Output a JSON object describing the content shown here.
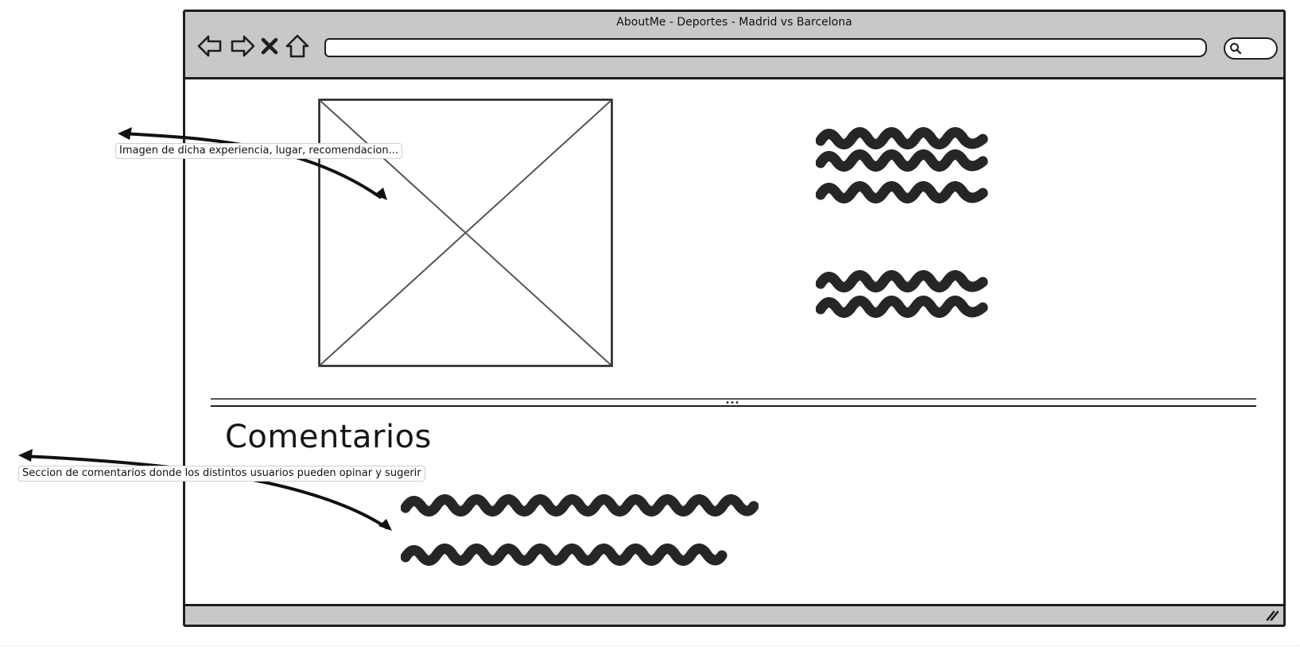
{
  "window": {
    "title": "AboutMe - Deportes - Madrid vs Barcelona",
    "url": ""
  },
  "toolbar": {
    "icons": [
      "back-arrow-icon",
      "forward-arrow-icon",
      "stop-icon",
      "home-icon",
      "search-icon"
    ]
  },
  "main": {
    "image_placeholder": "image-placeholder",
    "comments_heading": "Comentarios"
  },
  "annotations": {
    "image_note": "Imagen de dicha experiencia, lugar, recomendacion...",
    "comments_note": "Seccion de comentarios donde los distintos usuarios pueden opinar y sugerir"
  },
  "colors": {
    "chrome_gray": "#c8c8c8",
    "ink": "#1e1e1e",
    "scribble": "#262626"
  }
}
